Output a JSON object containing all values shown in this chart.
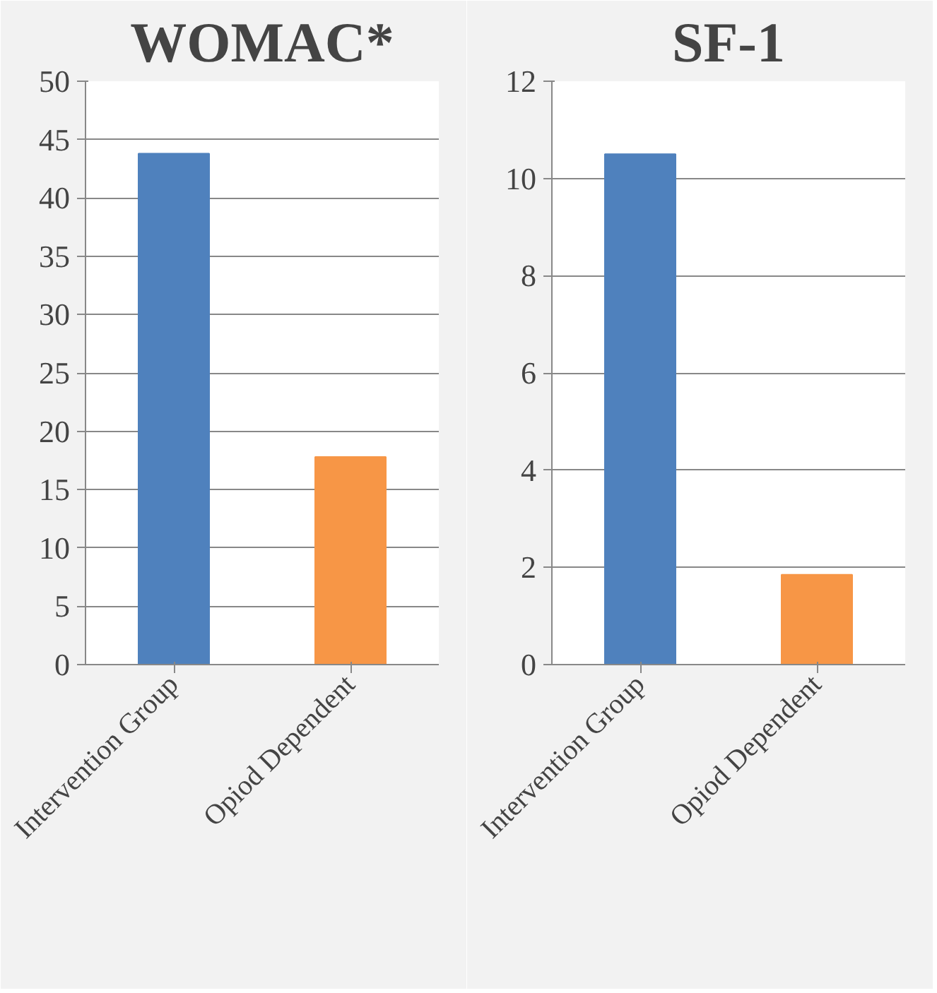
{
  "chart_data": [
    {
      "type": "bar",
      "title": "WOMAC*",
      "categories": [
        "Intervention Group",
        "Opiod Dependent"
      ],
      "colors": [
        "#4f81bd",
        "#f79646"
      ],
      "values": [
        43.8,
        17.8
      ],
      "ylim": [
        0,
        50
      ],
      "yticks": [
        0,
        5,
        10,
        15,
        20,
        25,
        30,
        35,
        40,
        45,
        50
      ],
      "grid": "y",
      "legend": false
    },
    {
      "type": "bar",
      "title": "SF-1",
      "categories": [
        "Intervention Group",
        "Opiod Dependent"
      ],
      "colors": [
        "#4f81bd",
        "#f79646"
      ],
      "values": [
        10.5,
        1.85
      ],
      "ylim": [
        0,
        12
      ],
      "yticks": [
        0,
        2,
        4,
        6,
        8,
        10,
        12
      ],
      "grid": "y",
      "legend": false
    }
  ]
}
